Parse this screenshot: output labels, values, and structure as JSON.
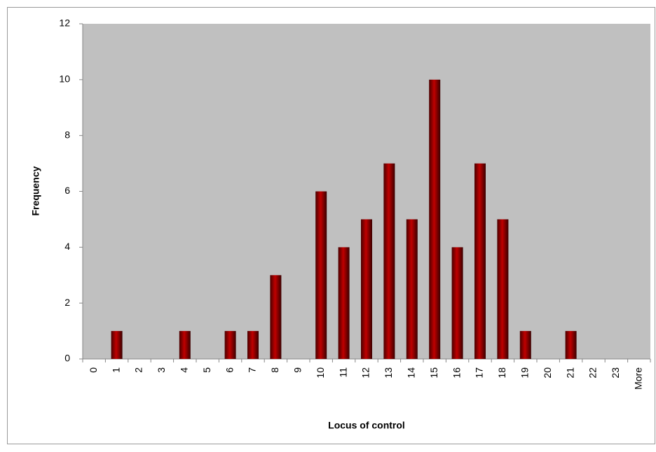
{
  "chart_data": {
    "type": "bar",
    "x_label": "Locus of control",
    "y_label": "Frequency",
    "categories": [
      "0",
      "1",
      "2",
      "3",
      "4",
      "5",
      "6",
      "7",
      "8",
      "9",
      "10",
      "11",
      "12",
      "13",
      "14",
      "15",
      "16",
      "17",
      "18",
      "19",
      "20",
      "21",
      "22",
      "23",
      "More"
    ],
    "values": [
      0,
      1,
      0,
      0,
      1,
      0,
      1,
      1,
      3,
      0,
      6,
      4,
      5,
      7,
      5,
      10,
      4,
      7,
      5,
      1,
      0,
      1,
      0,
      0,
      0
    ],
    "color": "#c00000",
    "ylim": [
      0,
      12
    ],
    "yticks": [
      0,
      2,
      4,
      6,
      8,
      10,
      12
    ],
    "grid": false
  }
}
